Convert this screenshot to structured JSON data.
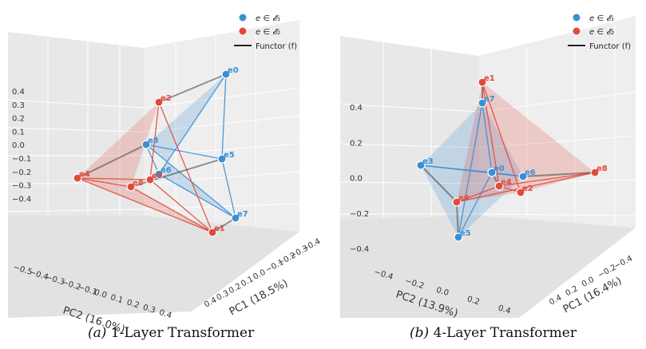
{
  "colors": {
    "set1": "#3a8fd4",
    "set2": "#e14a3b",
    "functor": "#444444",
    "pane": "#ebebeb",
    "grid": "#ffffff"
  },
  "legend": {
    "set1": "e ∈ 𝓔₁",
    "set2": "e ∈ 𝓔₂",
    "functor": "Functor (f)"
  },
  "captions": [
    {
      "label": "(a)",
      "title": "1-Layer Transformer"
    },
    {
      "label": "(b)",
      "title": "4-Layer Transformer"
    }
  ],
  "chart_data": [
    {
      "type": "scatter",
      "title": "1-Layer Transformer",
      "xlabel": "PC1 (18.5%)",
      "ylabel": "PC2 (16.0%)",
      "z_ticks": [
        "0.4",
        "0.3",
        "0.2",
        "0.1",
        "0.0",
        "−0.1",
        "−0.2",
        "−0.3",
        "−0.4"
      ],
      "pc1_ticks": [
        "0.4",
        "0.3",
        "0.2",
        "0.1",
        "0.0",
        "−0.1",
        "−0.2",
        "−0.3",
        "−0.4"
      ],
      "pc2_ticks": [
        "−0.5",
        "−0.4",
        "−0.3",
        "−0.2",
        "−0.1",
        "0.0",
        "0.1",
        "0.2",
        "0.3",
        "0.4"
      ],
      "legend_position": "top-right",
      "grid": true,
      "series": [
        {
          "name": "e ∈ 𝓔₁",
          "points": [
            {
              "label": "e0",
              "pc1": -0.35,
              "pc2": 0.3,
              "z": 0.38
            },
            {
              "label": "e3",
              "pc1": 0.1,
              "pc2": -0.15,
              "z": 0.12
            },
            {
              "label": "e5",
              "pc1": -0.25,
              "pc2": 0.25,
              "z": 0.05
            },
            {
              "label": "e6",
              "pc1": 0.0,
              "pc2": 0.0,
              "z": -0.02
            },
            {
              "label": "e7",
              "pc1": -0.1,
              "pc2": 0.35,
              "z": -0.25
            }
          ]
        },
        {
          "name": "e ∈ 𝓔₂",
          "points": [
            {
              "label": "e1",
              "pc1": 0.1,
              "pc2": 0.3,
              "z": -0.3
            },
            {
              "label": "e2",
              "pc1": -0.1,
              "pc2": -0.05,
              "z": 0.3
            },
            {
              "label": "e4",
              "pc1": 0.3,
              "pc2": -0.45,
              "z": 0.0
            },
            {
              "label": "e8",
              "pc1": 0.2,
              "pc2": -0.2,
              "z": -0.05
            },
            {
              "label": "e9",
              "pc1": 0.0,
              "pc2": 0.0,
              "z": 0.0
            }
          ]
        }
      ]
    },
    {
      "type": "scatter",
      "title": "4-Layer Transformer",
      "xlabel": "PC1 (16.4%)",
      "ylabel": "PC2 (13.9%)",
      "z_ticks": [
        "0.4",
        "0.2",
        "0.0",
        "−0.2",
        "−0.4"
      ],
      "pc1_ticks": [
        "0.4",
        "0.2",
        "0.0",
        "−0.2",
        "−0.4"
      ],
      "pc2_ticks": [
        "−0.4",
        "−0.2",
        "0.0",
        "0.2",
        "0.4"
      ],
      "legend_position": "top-right",
      "grid": true,
      "series": [
        {
          "name": "e ∈ 𝓔₁",
          "points": [
            {
              "label": "e0",
              "pc1": 0.0,
              "pc2": 0.05,
              "z": 0.02
            },
            {
              "label": "e3",
              "pc1": 0.1,
              "pc2": -0.4,
              "z": 0.08
            },
            {
              "label": "e5",
              "pc1": 0.2,
              "pc2": 0.0,
              "z": -0.3
            },
            {
              "label": "e6",
              "pc1": -0.1,
              "pc2": 0.2,
              "z": 0.0
            },
            {
              "label": "e7",
              "pc1": -0.2,
              "pc2": 0.0,
              "z": 0.38
            }
          ]
        },
        {
          "name": "e ∈ 𝓔₂",
          "points": [
            {
              "label": "e1",
              "pc1": -0.3,
              "pc2": 0.1,
              "z": 0.52
            },
            {
              "label": "e2",
              "pc1": 0.0,
              "pc2": 0.25,
              "z": -0.08
            },
            {
              "label": "e4",
              "pc1": 0.05,
              "pc2": 0.05,
              "z": -0.05
            },
            {
              "label": "e8",
              "pc1": -0.3,
              "pc2": 0.45,
              "z": 0.02
            },
            {
              "label": "e9",
              "pc1": 0.25,
              "pc2": -0.1,
              "z": -0.15
            }
          ]
        }
      ]
    }
  ]
}
